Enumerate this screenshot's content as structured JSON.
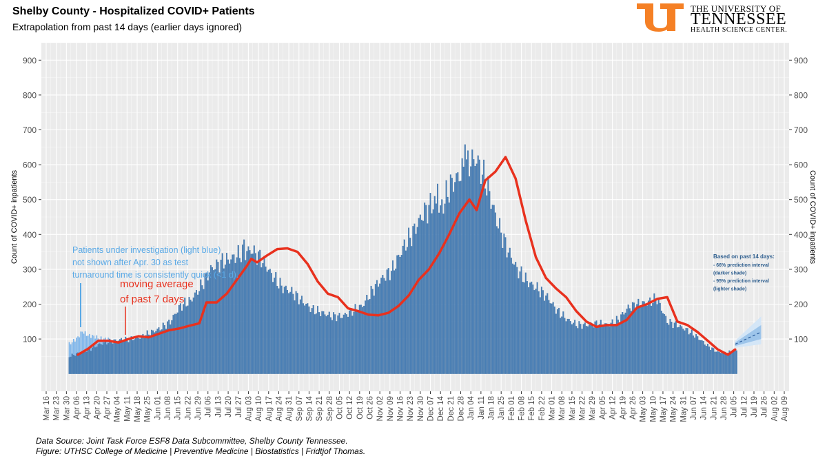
{
  "header": {
    "title": "Shelby County - Hospitalized COVID+ Patients",
    "subtitle": "Extrapolation from past 14 days (earlier days ignored)"
  },
  "logo": {
    "line1": "THE UNIVERSITY OF",
    "line2": "TENNESSEE",
    "line3": "HEALTH SCIENCE CENTER.",
    "mark_color": "#f58025"
  },
  "captions": {
    "source": "Data Source: Joint Task Force ESF8 Data Subcommittee, Shelby County Tennessee.",
    "figure": "Figure: UTHSC College of Medicine | Preventive Medicine | Biostatistics | Fridtjof Thomas."
  },
  "annotations": {
    "pui_note": [
      "Patients under investigation (light blue)",
      "not shown after Apr. 30 as test",
      "turnaround time is consistently quick (<1 d)."
    ],
    "ma_note": [
      "moving average",
      "of past 7 days"
    ],
    "pi_note": {
      "heading": "Based on past 14 days:",
      "lines": [
        "- 66% prediction interval",
        "(darker shade)",
        "- 95% prediction interval",
        "(lighter shade)"
      ]
    }
  },
  "colors": {
    "panel_bg": "#ebebeb",
    "grid": "#ffffff",
    "bars": "#4a7fb5",
    "pui_bars": "#7fb6ea",
    "moving_average": "#e8311e",
    "pui_text": "#5aa9e6",
    "ma_text": "#e8311e",
    "pi_66": "#9ec5ea",
    "pi_95": "#d4e6f7",
    "forecast_line": "#2c5f9e",
    "note_text": "#2f5f8f"
  },
  "chart_data": {
    "type": "bar",
    "title": "Shelby County - Hospitalized COVID+ Patients",
    "ylabel": "Count of COVID+ inpatients",
    "ylabel_right": "Count of COVID+ inpatients",
    "xlabel": "",
    "ylim": [
      -50,
      950
    ],
    "yticks": [
      100,
      200,
      300,
      400,
      500,
      600,
      700,
      800,
      900
    ],
    "x_start": "2020-03-16",
    "x_end": "2021-08-09",
    "xtick_labels": [
      "Mar 16",
      "Mar 23",
      "Mar 30",
      "Apr 06",
      "Apr 13",
      "Apr 20",
      "Apr 27",
      "May 04",
      "May 11",
      "May 18",
      "May 25",
      "Jun 01",
      "Jun 08",
      "Jun 15",
      "Jun 22",
      "Jun 29",
      "Jul 06",
      "Jul 13",
      "Jul 20",
      "Jul 27",
      "Aug 03",
      "Aug 10",
      "Aug 17",
      "Aug 24",
      "Aug 31",
      "Sep 07",
      "Sep 14",
      "Sep 21",
      "Sep 28",
      "Oct 05",
      "Oct 12",
      "Oct 19",
      "Oct 26",
      "Nov 02",
      "Nov 09",
      "Nov 16",
      "Nov 23",
      "Nov 30",
      "Dec 07",
      "Dec 14",
      "Dec 21",
      "Dec 28",
      "Jan 04",
      "Jan 11",
      "Jan 18",
      "Jan 25",
      "Feb 01",
      "Feb 08",
      "Feb 15",
      "Feb 22",
      "Mar 01",
      "Mar 08",
      "Mar 15",
      "Mar 22",
      "Mar 29",
      "Apr 05",
      "Apr 12",
      "Apr 19",
      "Apr 26",
      "May 03",
      "May 10",
      "May 17",
      "May 24",
      "May 31",
      "Jun 07",
      "Jun 14",
      "Jun 21",
      "Jun 28",
      "Jul 05",
      "Jul 12",
      "Jul 19",
      "Jul 26",
      "Aug 02",
      "Aug 09"
    ],
    "grid": true,
    "series": [
      {
        "name": "Hospitalized COVID+",
        "kind": "bar",
        "points": [
          [
            "2020-04-01",
            50
          ],
          [
            "2020-04-08",
            60
          ],
          [
            "2020-04-15",
            70
          ],
          [
            "2020-04-22",
            85
          ],
          [
            "2020-04-29",
            92
          ],
          [
            "2020-05-06",
            98
          ],
          [
            "2020-05-13",
            100
          ],
          [
            "2020-05-20",
            105
          ],
          [
            "2020-05-27",
            118
          ],
          [
            "2020-06-03",
            130
          ],
          [
            "2020-06-10",
            150
          ],
          [
            "2020-06-17",
            195
          ],
          [
            "2020-06-24",
            210
          ],
          [
            "2020-07-01",
            250
          ],
          [
            "2020-07-08",
            300
          ],
          [
            "2020-07-15",
            320
          ],
          [
            "2020-07-22",
            330
          ],
          [
            "2020-07-29",
            345
          ],
          [
            "2020-08-05",
            355
          ],
          [
            "2020-08-12",
            330
          ],
          [
            "2020-08-19",
            285
          ],
          [
            "2020-08-26",
            250
          ],
          [
            "2020-09-02",
            235
          ],
          [
            "2020-09-09",
            210
          ],
          [
            "2020-09-16",
            185
          ],
          [
            "2020-09-23",
            175
          ],
          [
            "2020-09-30",
            165
          ],
          [
            "2020-10-07",
            165
          ],
          [
            "2020-10-14",
            180
          ],
          [
            "2020-10-21",
            195
          ],
          [
            "2020-10-28",
            240
          ],
          [
            "2020-11-04",
            275
          ],
          [
            "2020-11-11",
            300
          ],
          [
            "2020-11-18",
            360
          ],
          [
            "2020-11-25",
            405
          ],
          [
            "2020-12-02",
            460
          ],
          [
            "2020-12-09",
            490
          ],
          [
            "2020-12-14",
            470
          ],
          [
            "2020-12-21",
            540
          ],
          [
            "2020-12-28",
            575
          ],
          [
            "2021-01-04",
            610
          ],
          [
            "2021-01-08",
            615
          ],
          [
            "2021-01-15",
            545
          ],
          [
            "2021-01-22",
            440
          ],
          [
            "2021-01-29",
            360
          ],
          [
            "2021-02-05",
            300
          ],
          [
            "2021-02-12",
            265
          ],
          [
            "2021-02-19",
            245
          ],
          [
            "2021-02-26",
            220
          ],
          [
            "2021-03-05",
            180
          ],
          [
            "2021-03-12",
            155
          ],
          [
            "2021-03-19",
            140
          ],
          [
            "2021-03-26",
            140
          ],
          [
            "2021-04-02",
            145
          ],
          [
            "2021-04-09",
            140
          ],
          [
            "2021-04-16",
            155
          ],
          [
            "2021-04-23",
            190
          ],
          [
            "2021-04-30",
            200
          ],
          [
            "2021-05-07",
            205
          ],
          [
            "2021-05-13",
            215
          ],
          [
            "2021-05-20",
            150
          ],
          [
            "2021-05-27",
            140
          ],
          [
            "2021-06-03",
            125
          ],
          [
            "2021-06-10",
            105
          ],
          [
            "2021-06-17",
            80
          ],
          [
            "2021-06-24",
            62
          ],
          [
            "2021-07-01",
            60
          ],
          [
            "2021-07-07",
            70
          ]
        ],
        "spikes": [
          [
            "2020-12-31",
            658
          ],
          [
            "2020-12-12",
            545
          ],
          [
            "2020-07-31",
            385
          ]
        ]
      },
      {
        "name": "Patients under investigation",
        "kind": "bar",
        "points": [
          [
            "2020-04-01",
            85
          ],
          [
            "2020-04-04",
            95
          ],
          [
            "2020-04-07",
            105
          ],
          [
            "2020-04-10",
            122
          ],
          [
            "2020-04-14",
            110
          ],
          [
            "2020-04-18",
            108
          ],
          [
            "2020-04-22",
            102
          ],
          [
            "2020-04-26",
            100
          ],
          [
            "2020-04-30",
            100
          ]
        ]
      },
      {
        "name": "moving average of past 7 days",
        "kind": "line",
        "points": [
          [
            "2020-04-07",
            55
          ],
          [
            "2020-04-14",
            72
          ],
          [
            "2020-04-21",
            95
          ],
          [
            "2020-04-28",
            95
          ],
          [
            "2020-05-05",
            90
          ],
          [
            "2020-05-12",
            100
          ],
          [
            "2020-05-19",
            108
          ],
          [
            "2020-05-26",
            105
          ],
          [
            "2020-06-02",
            115
          ],
          [
            "2020-06-09",
            125
          ],
          [
            "2020-06-16",
            130
          ],
          [
            "2020-06-23",
            138
          ],
          [
            "2020-06-30",
            145
          ],
          [
            "2020-07-05",
            205
          ],
          [
            "2020-07-12",
            205
          ],
          [
            "2020-07-19",
            230
          ],
          [
            "2020-07-26",
            270
          ],
          [
            "2020-08-02",
            310
          ],
          [
            "2020-08-05",
            330
          ],
          [
            "2020-08-09",
            320
          ],
          [
            "2020-08-16",
            340
          ],
          [
            "2020-08-23",
            358
          ],
          [
            "2020-08-30",
            360
          ],
          [
            "2020-09-06",
            350
          ],
          [
            "2020-09-13",
            315
          ],
          [
            "2020-09-20",
            265
          ],
          [
            "2020-09-27",
            230
          ],
          [
            "2020-10-04",
            220
          ],
          [
            "2020-10-11",
            188
          ],
          [
            "2020-10-18",
            180
          ],
          [
            "2020-10-25",
            170
          ],
          [
            "2020-11-01",
            168
          ],
          [
            "2020-11-08",
            175
          ],
          [
            "2020-11-15",
            195
          ],
          [
            "2020-11-22",
            225
          ],
          [
            "2020-11-29",
            270
          ],
          [
            "2020-12-06",
            300
          ],
          [
            "2020-12-13",
            345
          ],
          [
            "2020-12-20",
            400
          ],
          [
            "2020-12-27",
            460
          ],
          [
            "2021-01-03",
            500
          ],
          [
            "2021-01-08",
            470
          ],
          [
            "2021-01-14",
            555
          ],
          [
            "2021-01-21",
            580
          ],
          [
            "2021-01-28",
            622
          ],
          [
            "2021-02-04",
            560
          ],
          [
            "2021-02-11",
            440
          ],
          [
            "2021-02-18",
            335
          ],
          [
            "2021-02-25",
            275
          ],
          [
            "2021-03-04",
            245
          ],
          [
            "2021-03-11",
            220
          ],
          [
            "2021-03-18",
            180
          ],
          [
            "2021-03-25",
            150
          ],
          [
            "2021-04-01",
            135
          ],
          [
            "2021-04-08",
            140
          ],
          [
            "2021-04-15",
            140
          ],
          [
            "2021-04-22",
            155
          ],
          [
            "2021-04-29",
            190
          ],
          [
            "2021-05-06",
            200
          ],
          [
            "2021-05-13",
            215
          ],
          [
            "2021-05-20",
            220
          ],
          [
            "2021-05-27",
            150
          ],
          [
            "2021-06-03",
            140
          ],
          [
            "2021-06-10",
            120
          ],
          [
            "2021-06-17",
            95
          ],
          [
            "2021-06-24",
            70
          ],
          [
            "2021-07-01",
            55
          ],
          [
            "2021-07-06",
            70
          ]
        ]
      },
      {
        "name": "Extrapolation",
        "kind": "line",
        "points": [
          [
            "2021-07-06",
            85
          ],
          [
            "2021-07-24",
            120
          ]
        ],
        "pi66": [
          [
            80,
            90
          ],
          [
            100,
            140
          ]
        ],
        "pi95": [
          [
            75,
            95
          ],
          [
            85,
            165
          ]
        ]
      }
    ]
  }
}
